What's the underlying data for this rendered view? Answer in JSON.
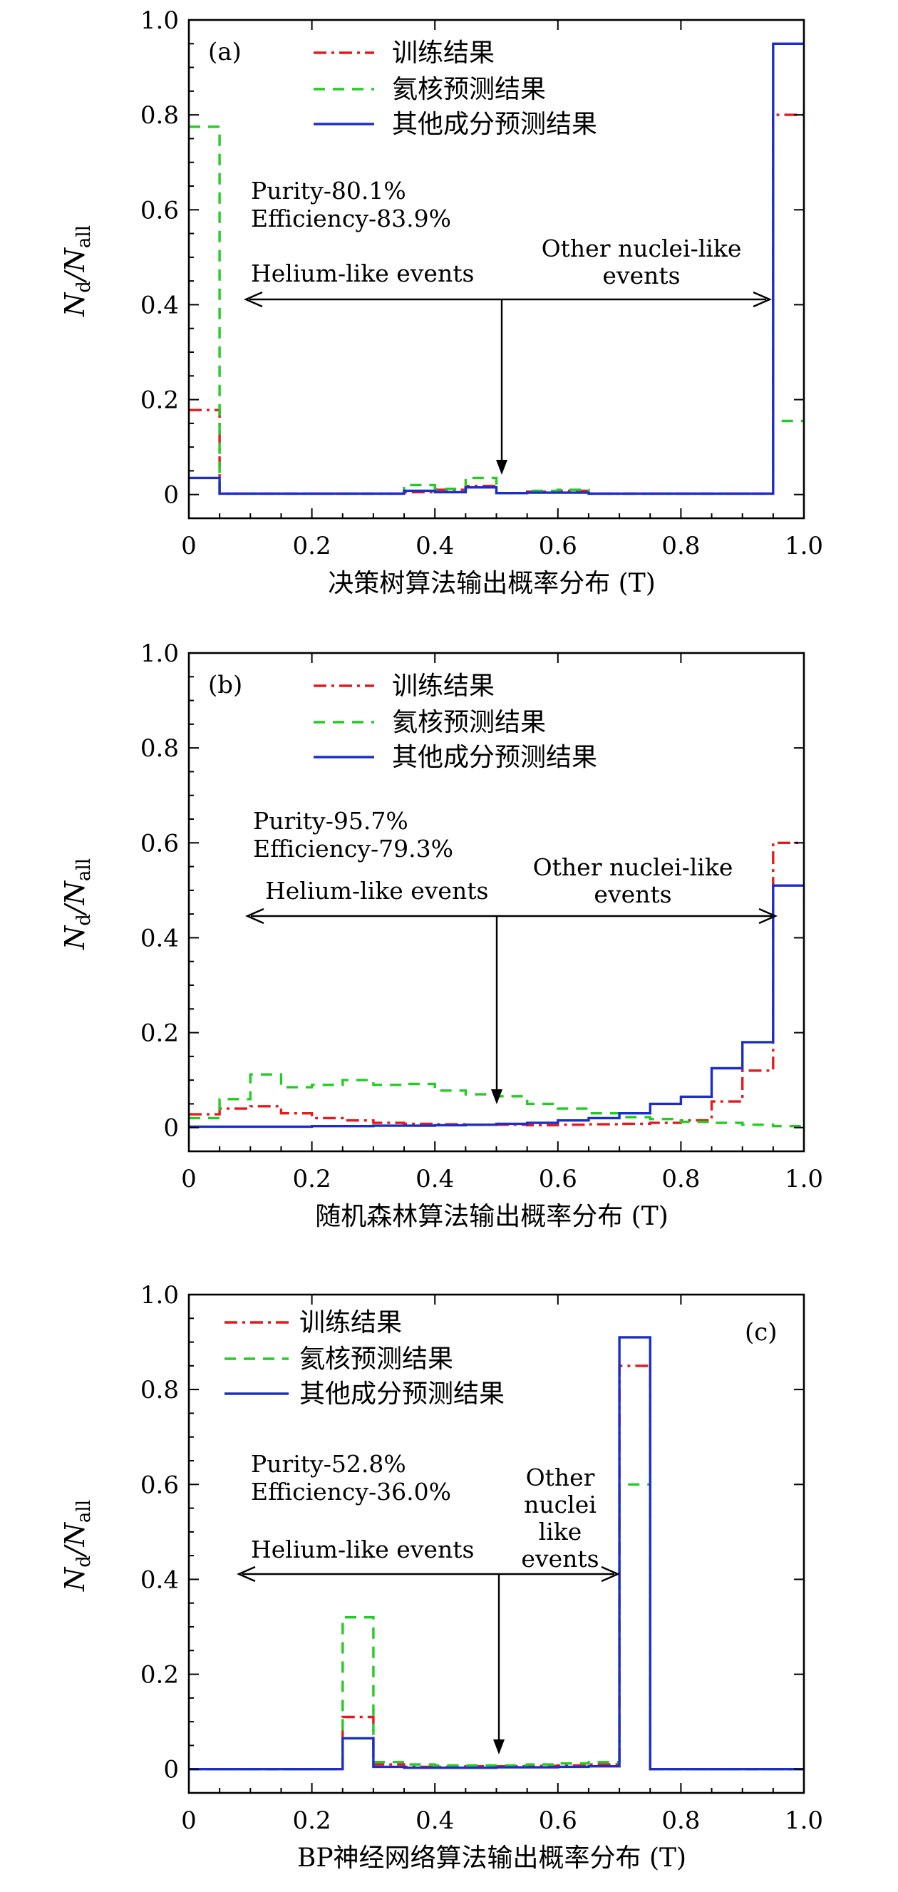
{
  "colors": {
    "train": "#e41a1c",
    "helium": "#22cc22",
    "other": "#1c2ec8"
  },
  "legend_labels": {
    "train": "训练结果",
    "helium": "氦核预测结果",
    "other": "其他成分预测结果"
  },
  "ylabel": {
    "n": "N",
    "sub_d": "d",
    "slash": "/",
    "n2": "N",
    "sub_all": "all"
  },
  "chart_data": [
    {
      "type": "line",
      "panel": "(a)",
      "xlabel": "决策树算法输出概率分布 (T)",
      "xlim": [
        0,
        1
      ],
      "ylim": [
        -0.05,
        1.0
      ],
      "x_ticks": [
        "0",
        "0.2",
        "0.4",
        "0.6",
        "0.8",
        "1.0"
      ],
      "y_ticks": [
        "0",
        "0.2",
        "0.4",
        "0.6",
        "0.8",
        "1.0"
      ],
      "purity": "Purity-80.1%",
      "efficiency": "Efficiency-83.9%",
      "helium_label": "Helium-like events",
      "other_label": [
        "Other nuclei-like",
        "events"
      ],
      "bin_edges": [
        0,
        0.05,
        0.1,
        0.15,
        0.2,
        0.25,
        0.3,
        0.35,
        0.4,
        0.45,
        0.5,
        0.55,
        0.6,
        0.65,
        0.7,
        0.75,
        0.8,
        0.85,
        0.9,
        0.95,
        1.0
      ],
      "series": [
        {
          "name": "训练结果",
          "key": "train",
          "values": [
            0.178,
            0.002,
            0.002,
            0.002,
            0.002,
            0.002,
            0.002,
            0.005,
            0.01,
            0.018,
            0.003,
            0.006,
            0.008,
            0.002,
            0.002,
            0.002,
            0.002,
            0.002,
            0.002,
            0.8
          ]
        },
        {
          "name": "氦核预测结果",
          "key": "helium",
          "values": [
            0.775,
            0.002,
            0.002,
            0.002,
            0.002,
            0.002,
            0.002,
            0.02,
            0.012,
            0.035,
            0.003,
            0.008,
            0.01,
            0.002,
            0.002,
            0.002,
            0.002,
            0.002,
            0.002,
            0.155
          ]
        },
        {
          "name": "其他成分预测结果",
          "key": "other",
          "values": [
            0.035,
            0.002,
            0.002,
            0.002,
            0.002,
            0.002,
            0.002,
            0.008,
            0.005,
            0.015,
            0.003,
            0.004,
            0.004,
            0.002,
            0.002,
            0.002,
            0.002,
            0.002,
            0.002,
            0.95
          ]
        }
      ]
    },
    {
      "type": "line",
      "panel": "(b)",
      "xlabel": "随机森林算法输出概率分布 (T)",
      "xlim": [
        0,
        1
      ],
      "ylim": [
        -0.05,
        1.0
      ],
      "x_ticks": [
        "0",
        "0.2",
        "0.4",
        "0.6",
        "0.8",
        "1.0"
      ],
      "y_ticks": [
        "0",
        "0.2",
        "0.4",
        "0.6",
        "0.8",
        "1.0"
      ],
      "purity": "Purity-95.7%",
      "efficiency": "Efficiency-79.3%",
      "helium_label": "Helium-like events",
      "other_label": [
        "Other nuclei-like",
        "events"
      ],
      "bin_edges": [
        0,
        0.05,
        0.1,
        0.15,
        0.2,
        0.25,
        0.3,
        0.35,
        0.4,
        0.45,
        0.5,
        0.55,
        0.6,
        0.65,
        0.7,
        0.75,
        0.8,
        0.85,
        0.9,
        0.95,
        1.0
      ],
      "series": [
        {
          "name": "训练结果",
          "key": "train",
          "values": [
            0.028,
            0.04,
            0.045,
            0.03,
            0.02,
            0.015,
            0.01,
            0.008,
            0.007,
            0.006,
            0.006,
            0.005,
            0.006,
            0.007,
            0.008,
            0.01,
            0.015,
            0.055,
            0.12,
            0.6
          ]
        },
        {
          "name": "氦核预测结果",
          "key": "helium",
          "values": [
            0.02,
            0.06,
            0.112,
            0.085,
            0.09,
            0.1,
            0.09,
            0.092,
            0.078,
            0.07,
            0.066,
            0.05,
            0.04,
            0.03,
            0.022,
            0.018,
            0.012,
            0.01,
            0.006,
            0.003
          ]
        },
        {
          "name": "其他成分预测结果",
          "key": "other",
          "values": [
            0.002,
            0.002,
            0.002,
            0.002,
            0.003,
            0.003,
            0.004,
            0.004,
            0.005,
            0.006,
            0.008,
            0.01,
            0.015,
            0.02,
            0.03,
            0.05,
            0.065,
            0.125,
            0.18,
            0.51
          ]
        }
      ]
    },
    {
      "type": "line",
      "panel": "(c)",
      "xlabel": "BP神经网络算法输出概率分布 (T)",
      "xlim": [
        0,
        1
      ],
      "ylim": [
        -0.05,
        1.0
      ],
      "x_ticks": [
        "0",
        "0.2",
        "0.4",
        "0.6",
        "0.8",
        "1.0"
      ],
      "y_ticks": [
        "0",
        "0.2",
        "0.4",
        "0.6",
        "0.8",
        "1.0"
      ],
      "purity": "Purity-52.8%",
      "efficiency": "Efficiency-36.0%",
      "helium_label": "Helium-like events",
      "other_label": [
        "Other",
        "nuclei",
        "like",
        "events"
      ],
      "bin_edges": [
        0,
        0.05,
        0.1,
        0.15,
        0.2,
        0.25,
        0.3,
        0.35,
        0.4,
        0.45,
        0.5,
        0.55,
        0.6,
        0.65,
        0.7,
        0.75,
        0.8,
        0.85,
        0.9,
        0.95,
        1.0
      ],
      "series": [
        {
          "name": "训练结果",
          "key": "train",
          "values": [
            0,
            0,
            0,
            0,
            0,
            0.11,
            0.01,
            0.005,
            0.005,
            0.006,
            0.006,
            0.007,
            0.008,
            0.01,
            0.85,
            0,
            0,
            0,
            0,
            0
          ]
        },
        {
          "name": "氦核预测结果",
          "key": "helium",
          "values": [
            0,
            0,
            0,
            0,
            0,
            0.32,
            0.015,
            0.01,
            0.008,
            0.008,
            0.008,
            0.01,
            0.012,
            0.015,
            0.6,
            0,
            0,
            0,
            0,
            0
          ]
        },
        {
          "name": "其他成分预测结果",
          "key": "other",
          "values": [
            0,
            0,
            0,
            0,
            0,
            0.065,
            0.005,
            0.003,
            0.003,
            0.003,
            0.004,
            0.004,
            0.005,
            0.006,
            0.91,
            0,
            0,
            0,
            0,
            0
          ]
        }
      ]
    }
  ]
}
